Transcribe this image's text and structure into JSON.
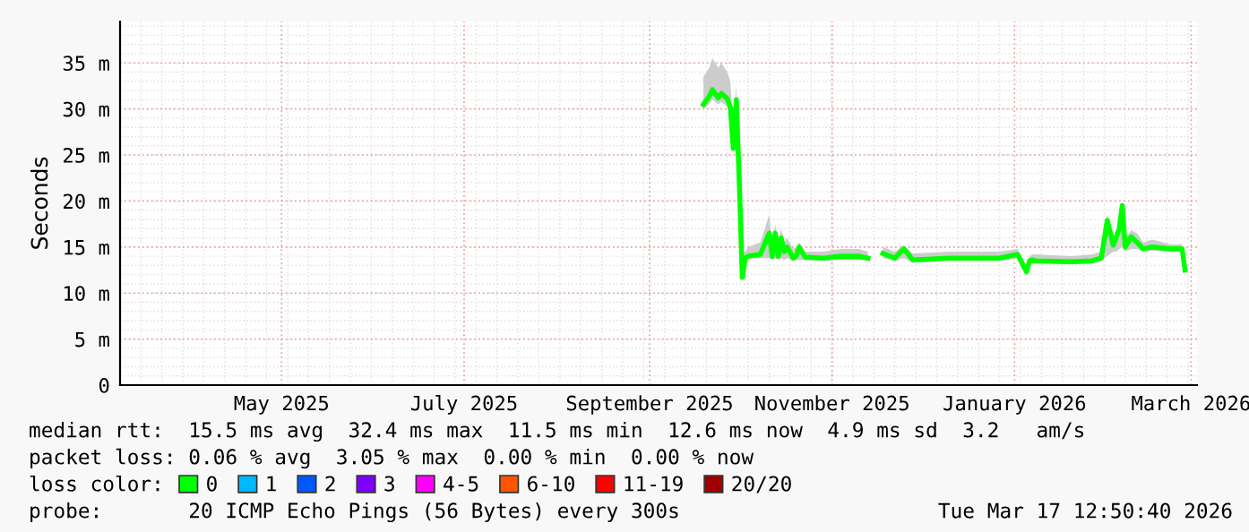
{
  "chart_data": {
    "type": "line",
    "ylabel": "Seconds",
    "x": [
      "2025-09-19",
      "2025-09-21",
      "2025-09-22",
      "2025-09-24",
      "2025-09-25",
      "2025-09-27",
      "2025-09-28",
      "2025-09-29",
      "2025-09-30",
      "2025-10-01",
      "2025-10-02",
      "2025-10-03",
      "2025-10-04",
      "2025-10-08",
      "2025-10-11",
      "2025-10-12",
      "2025-10-13",
      "2025-10-14",
      "2025-10-15",
      "2025-10-16",
      "2025-10-17",
      "2025-10-19",
      "2025-10-20",
      "2025-10-21",
      "2025-10-23",
      "2025-10-29",
      "2025-11-04",
      "2025-11-10",
      "2025-11-13",
      "2025-11-16",
      "2025-11-18",
      "2025-11-22",
      "2025-11-25",
      "2025-11-28",
      "2025-12-10",
      "2025-12-27",
      "2026-01-02",
      "2026-01-05",
      "2026-01-06",
      "2026-01-07",
      "2026-01-08",
      "2026-01-20",
      "2026-01-27",
      "2026-01-30",
      "2026-02-01",
      "2026-02-03",
      "2026-02-04",
      "2026-02-05",
      "2026-02-06",
      "2026-02-07",
      "2026-02-09",
      "2026-02-11",
      "2026-02-13",
      "2026-02-16",
      "2026-02-22",
      "2026-02-26",
      "2026-02-27"
    ],
    "series": [
      {
        "name": "0",
        "color": "#00ff00",
        "values": [
          30.5,
          31.4,
          32.1,
          31.2,
          31.7,
          31.1,
          30.2,
          25.7,
          31.0,
          22.0,
          11.7,
          13.8,
          14.0,
          14.2,
          16.5,
          14.0,
          16.5,
          14.0,
          16.0,
          14.5,
          15.0,
          13.8,
          14.0,
          15.0,
          13.9,
          13.8,
          14.0,
          14.0,
          13.8,
          null,
          14.3,
          13.8,
          14.8,
          13.6,
          13.8,
          13.8,
          14.2,
          12.3,
          13.5,
          13.6,
          13.5,
          13.4,
          13.5,
          13.8,
          17.9,
          15.2,
          16.1,
          17.0,
          19.5,
          15.0,
          16.1,
          15.5,
          14.8,
          15.0,
          14.8,
          14.8,
          12.5
        ],
        "lower": [
          30.0,
          30.5,
          31.0,
          30.5,
          30.8,
          30.2,
          29.5,
          25.0,
          30.0,
          21.5,
          11.5,
          13.5,
          13.8,
          13.8,
          13.8,
          13.6,
          13.8,
          13.6,
          13.8,
          13.6,
          13.8,
          13.5,
          13.6,
          13.6,
          13.6,
          13.5,
          13.6,
          13.6,
          13.5,
          null,
          13.8,
          13.5,
          13.8,
          13.3,
          13.5,
          13.5,
          13.8,
          12.0,
          13.2,
          13.3,
          13.2,
          13.1,
          13.2,
          13.5,
          14.0,
          14.5,
          14.5,
          14.8,
          15.0,
          14.5,
          14.8,
          14.8,
          14.5,
          14.6,
          14.5,
          14.5,
          12.2
        ],
        "upper": [
          33.5,
          34.5,
          35.5,
          34.5,
          35.0,
          34.0,
          33.0,
          28.0,
          32.5,
          23.5,
          14.5,
          14.5,
          15.0,
          15.5,
          18.5,
          15.0,
          17.5,
          15.0,
          17.0,
          15.5,
          16.0,
          14.8,
          15.0,
          15.5,
          14.5,
          14.5,
          14.8,
          14.8,
          14.5,
          null,
          15.0,
          14.5,
          15.2,
          14.3,
          14.5,
          14.5,
          14.8,
          13.0,
          14.0,
          14.2,
          14.2,
          14.0,
          14.2,
          14.5,
          18.5,
          16.0,
          16.8,
          17.5,
          20.0,
          16.0,
          16.8,
          16.5,
          15.5,
          15.8,
          15.3,
          15.3,
          13.2
        ]
      },
      {
        "name": "1",
        "color": "#00b8ff",
        "values": [
          null,
          null,
          null,
          null,
          null,
          null,
          null,
          null,
          null,
          null,
          null,
          null,
          null,
          null,
          null,
          null,
          null,
          null,
          null,
          null,
          null,
          null,
          null,
          null,
          null,
          null,
          null,
          null,
          null,
          null,
          null,
          null,
          null,
          null,
          null,
          null,
          null,
          null,
          null,
          null,
          null,
          null,
          null,
          null,
          null,
          null,
          null,
          null,
          null,
          null,
          null,
          null,
          null,
          null,
          null,
          null,
          null
        ]
      },
      {
        "name": "2",
        "color": "#0059ff",
        "values": [
          null,
          null,
          null,
          null,
          null,
          null,
          null,
          null,
          null,
          null,
          null,
          null,
          null,
          null,
          null,
          null,
          null,
          null,
          null,
          null,
          null,
          null,
          null,
          null,
          null,
          null,
          null,
          null,
          null,
          null,
          null,
          null,
          null,
          null,
          null,
          null,
          null,
          null,
          null,
          null,
          null,
          null,
          null,
          null,
          null,
          null,
          null,
          null,
          null,
          null,
          null,
          null,
          null,
          null,
          null,
          null,
          null
        ]
      },
      {
        "name": "3",
        "color": "#7e00ff",
        "values": [
          null,
          null,
          null,
          null,
          null,
          null,
          null,
          null,
          null,
          null,
          null,
          null,
          null,
          null,
          null,
          null,
          null,
          null,
          null,
          null,
          null,
          null,
          null,
          null,
          null,
          null,
          null,
          null,
          null,
          null,
          null,
          null,
          null,
          null,
          null,
          null,
          null,
          null,
          null,
          null,
          null,
          null,
          null,
          null,
          null,
          null,
          null,
          null,
          null,
          null,
          null,
          null,
          null,
          null,
          null,
          null,
          null
        ]
      },
      {
        "name": "4-5",
        "color": "#ff00ff",
        "values": [
          null,
          null,
          null,
          null,
          null,
          null,
          null,
          null,
          null,
          null,
          null,
          null,
          null,
          null,
          null,
          null,
          null,
          null,
          null,
          null,
          null,
          null,
          null,
          null,
          null,
          null,
          null,
          null,
          null,
          null,
          null,
          null,
          null,
          null,
          null,
          null,
          null,
          null,
          null,
          null,
          null,
          null,
          null,
          null,
          null,
          null,
          null,
          null,
          null,
          null,
          null,
          null,
          null,
          null,
          null,
          null,
          null
        ]
      },
      {
        "name": "6-10",
        "color": "#ff5500",
        "values": [
          null,
          null,
          null,
          null,
          null,
          null,
          null,
          null,
          null,
          null,
          null,
          null,
          null,
          null,
          null,
          null,
          null,
          null,
          null,
          null,
          null,
          null,
          null,
          null,
          null,
          null,
          null,
          null,
          null,
          null,
          null,
          null,
          null,
          null,
          null,
          null,
          null,
          null,
          null,
          null,
          null,
          null,
          null,
          null,
          null,
          null,
          null,
          null,
          null,
          null,
          null,
          null,
          null,
          null,
          null,
          null,
          null
        ]
      },
      {
        "name": "11-19",
        "color": "#ff0000",
        "values": [
          null,
          null,
          null,
          null,
          null,
          null,
          null,
          null,
          null,
          null,
          null,
          null,
          null,
          null,
          null,
          null,
          null,
          null,
          null,
          null,
          null,
          null,
          null,
          null,
          null,
          null,
          null,
          null,
          null,
          null,
          null,
          null,
          null,
          null,
          null,
          null,
          null,
          null,
          null,
          null,
          null,
          null,
          null,
          null,
          null,
          null,
          null,
          null,
          null,
          null,
          null,
          null,
          null,
          null,
          null,
          null,
          null
        ]
      },
      {
        "name": "20/20",
        "color": "#a10000",
        "values": [
          null,
          null,
          null,
          null,
          null,
          null,
          null,
          null,
          null,
          null,
          null,
          null,
          null,
          null,
          null,
          null,
          null,
          null,
          null,
          null,
          null,
          null,
          null,
          null,
          null,
          null,
          null,
          null,
          null,
          null,
          null,
          null,
          null,
          null,
          null,
          null,
          null,
          null,
          null,
          null,
          null,
          null,
          null,
          null,
          null,
          null,
          null,
          null,
          null,
          null,
          null,
          null,
          null,
          null,
          null,
          null,
          null
        ]
      }
    ],
    "xlim": [
      "2025-03-08",
      "2026-03-03"
    ],
    "xticks": [
      {
        "value": "2025-05-01",
        "label": "May 2025"
      },
      {
        "value": "2025-07-01",
        "label": "July 2025"
      },
      {
        "value": "2025-09-01",
        "label": "September 2025"
      },
      {
        "value": "2025-11-01",
        "label": "November 2025"
      },
      {
        "value": "2026-01-01",
        "label": "January 2026"
      },
      {
        "value": "2026-03-01",
        "label": "March 2026"
      }
    ],
    "ylim": [
      0,
      39.5
    ],
    "yticks": [
      0,
      {
        "value": 5,
        "label": "5 m"
      },
      {
        "value": 10,
        "label": "10 m"
      },
      {
        "value": 15,
        "label": "15 m"
      },
      {
        "value": 20,
        "label": "20 m"
      },
      {
        "value": 25,
        "label": "25 m"
      },
      {
        "value": 30,
        "label": "30 m"
      },
      {
        "value": 35,
        "label": "35 m"
      }
    ],
    "grid": true,
    "legend": "bottom",
    "legend_title": "loss color:",
    "marker": "none",
    "line_style": "solid",
    "annotations": [
      "median rtt:  15.5 ms avg  32.4 ms max  11.5 ms min  12.6 ms now  4.9 ms sd  3.2   am/s",
      "packet loss: 0.06 % avg  3.05 % max  0.00 % min  0.00 % now",
      "probe:       20 ICMP Echo Pings (56 Bytes) every 300s",
      "Tue Mar 17 12:50:40 2026"
    ]
  }
}
